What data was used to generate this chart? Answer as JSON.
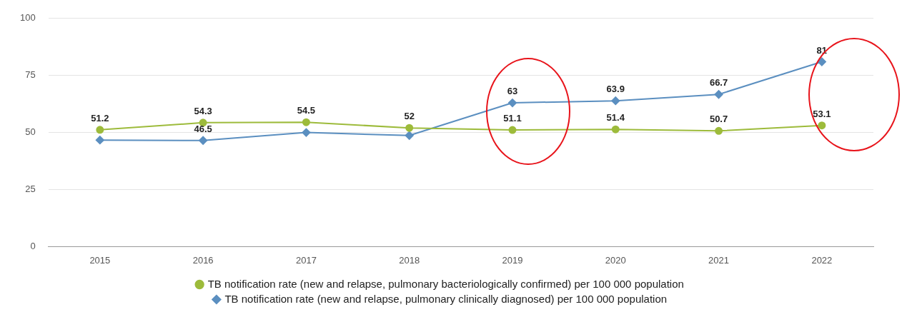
{
  "chart_data": {
    "type": "line",
    "categories": [
      "2015",
      "2016",
      "2017",
      "2018",
      "2019",
      "2020",
      "2021",
      "2022"
    ],
    "series": [
      {
        "name": "TB notification rate (new and relapse, pulmonary bacteriologically confirmed) per 100 000 population",
        "color": "#9dbb3b",
        "marker": "circle",
        "values": [
          51.2,
          54.3,
          54.5,
          52,
          51.1,
          51.4,
          50.7,
          53.1
        ],
        "value_labels": [
          "51.2",
          "54.3",
          "54.5",
          "52",
          "51.1",
          "51.4",
          "50.7",
          "53.1"
        ]
      },
      {
        "name": "TB notification rate (new and relapse, pulmonary clinically diagnosed) per 100 000 population",
        "color": "#5b8fc0",
        "marker": "diamond",
        "values": [
          46.7,
          46.5,
          50,
          48.7,
          63,
          63.9,
          66.7,
          81
        ],
        "value_labels": [
          null,
          "46.5",
          null,
          null,
          "63",
          "63.9",
          "66.7",
          "81"
        ]
      }
    ],
    "ylim": [
      0,
      100
    ],
    "yticks": [
      0,
      25,
      50,
      75,
      100
    ],
    "grid": "y",
    "legend": "bottom"
  }
}
